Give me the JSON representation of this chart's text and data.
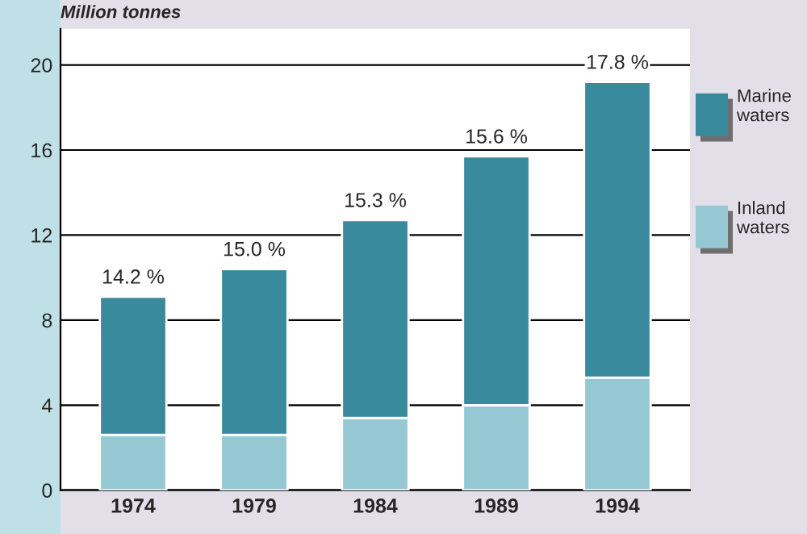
{
  "chart_data": {
    "type": "bar",
    "stacked": true,
    "ylabel": "Million tonnes",
    "categories": [
      "1974",
      "1979",
      "1984",
      "1989",
      "1994"
    ],
    "series": [
      {
        "name": "Inland\nwaters",
        "color": "#96c8d4",
        "values": [
          2.6,
          2.6,
          3.4,
          4.0,
          5.3
        ]
      },
      {
        "name": "Marine\nwaters",
        "color": "#3a8a9e",
        "values": [
          6.5,
          7.8,
          9.3,
          11.7,
          13.9
        ]
      }
    ],
    "ylim": [
      0,
      21.7
    ],
    "yticks": [
      0,
      4,
      8,
      12,
      16,
      20
    ],
    "grid": "y",
    "legend": "right",
    "annotations": [
      {
        "text": "14.2 %",
        "x": "1974",
        "y": 9.1
      },
      {
        "text": "15.0 %",
        "x": "1979",
        "y": 10.4
      },
      {
        "text": "15.3 %",
        "x": "1984",
        "y": 12.7
      },
      {
        "text": "15.6 %",
        "x": "1989",
        "y": 15.7
      },
      {
        "text": "17.8 %",
        "x": "1994",
        "y": 19.2
      }
    ]
  }
}
